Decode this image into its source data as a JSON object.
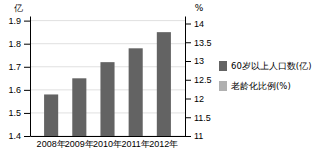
{
  "chart_data": {
    "type": "bar",
    "categories": [
      "2008年",
      "2009年",
      "2010年",
      "2011年",
      "2012年"
    ],
    "series": [
      {
        "name": "60岁以上人口数(亿)",
        "color": "#636363",
        "values": [
          1.58,
          1.65,
          1.72,
          1.78,
          1.85
        ]
      },
      {
        "name": "老龄化比例(%)",
        "color": "#b0b0b0",
        "axis": "y2",
        "values": [
          null,
          null,
          null,
          null,
          null
        ]
      }
    ],
    "ylabel": "亿",
    "y2label": "%",
    "ylim": [
      1.4,
      1.92
    ],
    "yticks": [
      1.4,
      1.5,
      1.6,
      1.7,
      1.8,
      1.9
    ],
    "y2lim": [
      11,
      14.2
    ],
    "y2ticks": [
      11,
      11.5,
      12,
      12.5,
      13,
      13.5,
      14
    ],
    "grid": true,
    "legend": "right"
  }
}
